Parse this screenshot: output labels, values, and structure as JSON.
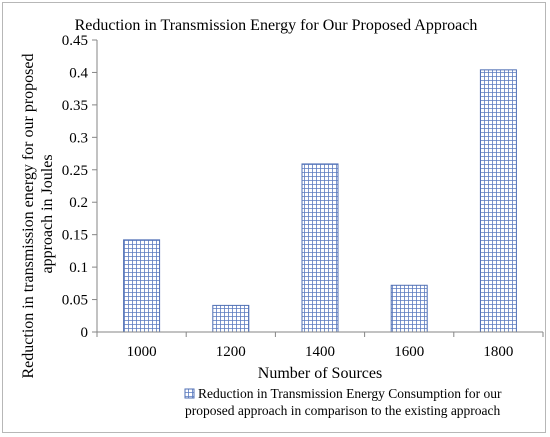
{
  "chart_data": {
    "type": "bar",
    "title": "Reduction in  Transmission Energy for Our Proposed Approach",
    "xlabel": "Number of Sources",
    "ylabel_lines": [
      "Reduction in transmission energy for our proposed",
      "approach in Joules"
    ],
    "categories": [
      "1000",
      "1200",
      "1400",
      "1600",
      "1800"
    ],
    "series": [
      {
        "name_lines": [
          "Reduction in Transmission Energy Consumption for our",
          "proposed approach in comparison to the existing approach"
        ],
        "values": [
          0.142,
          0.041,
          0.259,
          0.072,
          0.404
        ]
      }
    ],
    "yticks": [
      "0",
      "0.05",
      "0.1",
      "0.15",
      "0.2",
      "0.25",
      "0.3",
      "0.35",
      "0.4",
      "0.45"
    ],
    "ylim": [
      0,
      0.45
    ],
    "grid": false,
    "legend": "bottom",
    "colors": {
      "bar_border": "#4f6fb5",
      "bar_grid": "#4f6fb5",
      "axis": "#868686"
    }
  }
}
